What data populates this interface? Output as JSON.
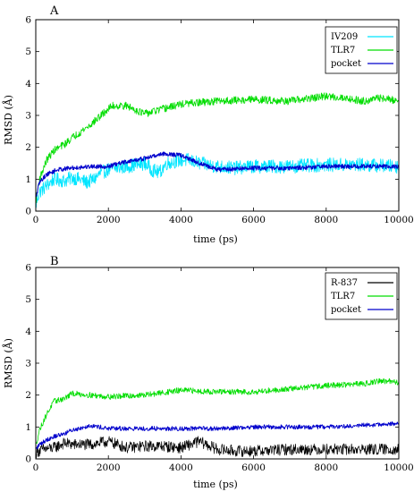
{
  "chart_data": [
    {
      "type": "line",
      "panel_label": "A",
      "xlabel": "time (ps)",
      "ylabel": "RMSD (Å)",
      "xlim": [
        0,
        10000
      ],
      "ylim": [
        0,
        6
      ],
      "xticks": [
        0,
        2000,
        4000,
        6000,
        8000,
        10000
      ],
      "yticks": [
        0,
        1,
        2,
        3,
        4,
        5,
        6
      ],
      "grid": false,
      "legend": "top-right",
      "series": [
        {
          "name": "IV209",
          "color": "#00e5ff",
          "noise": 0.22,
          "width": 0.8,
          "x": [
            0,
            100,
            300,
            500,
            800,
            1000,
            1200,
            1400,
            1600,
            1800,
            2000,
            2500,
            3000,
            3200,
            3400,
            3600,
            4000,
            4200,
            4500,
            5000,
            5500,
            6000,
            7000,
            8000,
            9000,
            10000
          ],
          "y": [
            0.2,
            0.6,
            0.8,
            1.0,
            0.95,
            1.05,
            1.0,
            0.9,
            1.0,
            1.2,
            1.3,
            1.4,
            1.5,
            1.3,
            1.2,
            1.5,
            1.6,
            1.6,
            1.5,
            1.4,
            1.35,
            1.4,
            1.4,
            1.45,
            1.45,
            1.4
          ]
        },
        {
          "name": "TLR7",
          "color": "#00dd00",
          "noise": 0.12,
          "width": 0.8,
          "x": [
            0,
            100,
            300,
            500,
            800,
            1000,
            1500,
            1900,
            2100,
            2500,
            3000,
            3500,
            4000,
            5000,
            6000,
            7000,
            8000,
            8500,
            9000,
            9500,
            10000
          ],
          "y": [
            0.3,
            1.0,
            1.6,
            1.9,
            2.1,
            2.3,
            2.7,
            3.1,
            3.3,
            3.3,
            3.05,
            3.2,
            3.35,
            3.45,
            3.5,
            3.45,
            3.6,
            3.55,
            3.45,
            3.55,
            3.45
          ]
        },
        {
          "name": "pocket",
          "color": "#0000cc",
          "noise": 0.07,
          "width": 1.0,
          "x": [
            0,
            100,
            300,
            600,
            1000,
            1500,
            2000,
            2500,
            3000,
            3500,
            4000,
            4500,
            5000,
            6000,
            7000,
            8000,
            9000,
            10000
          ],
          "y": [
            0.4,
            0.9,
            1.15,
            1.3,
            1.35,
            1.4,
            1.4,
            1.55,
            1.65,
            1.8,
            1.75,
            1.5,
            1.3,
            1.35,
            1.35,
            1.4,
            1.4,
            1.4
          ]
        }
      ]
    },
    {
      "type": "line",
      "panel_label": "B",
      "xlabel": "time (ps)",
      "ylabel": "RMSD (Å)",
      "xlim": [
        0,
        10000
      ],
      "ylim": [
        0,
        6
      ],
      "xticks": [
        0,
        2000,
        4000,
        6000,
        8000,
        10000
      ],
      "yticks": [
        0,
        1,
        2,
        3,
        4,
        5,
        6
      ],
      "grid": false,
      "legend": "top-right",
      "series": [
        {
          "name": "R-837",
          "color": "#000000",
          "noise": 0.18,
          "width": 0.7,
          "x": [
            0,
            200,
            500,
            800,
            1000,
            1500,
            2000,
            2500,
            3000,
            3500,
            4000,
            4500,
            5000,
            5500,
            6000,
            7000,
            8000,
            9000,
            10000
          ],
          "y": [
            0.2,
            0.3,
            0.35,
            0.5,
            0.45,
            0.45,
            0.55,
            0.35,
            0.4,
            0.4,
            0.35,
            0.55,
            0.3,
            0.25,
            0.25,
            0.3,
            0.3,
            0.3,
            0.3
          ]
        },
        {
          "name": "TLR7",
          "color": "#00dd00",
          "noise": 0.09,
          "width": 0.8,
          "x": [
            0,
            100,
            300,
            500,
            800,
            1000,
            1500,
            2000,
            3000,
            4000,
            5000,
            6000,
            7000,
            8000,
            9000,
            9500,
            10000
          ],
          "y": [
            0.4,
            0.9,
            1.4,
            1.8,
            1.9,
            2.05,
            2.0,
            1.95,
            2.0,
            2.15,
            2.1,
            2.1,
            2.2,
            2.3,
            2.35,
            2.45,
            2.4
          ]
        },
        {
          "name": "pocket",
          "color": "#0000cc",
          "noise": 0.07,
          "width": 0.9,
          "x": [
            0,
            100,
            300,
            500,
            800,
            1000,
            1500,
            2000,
            3000,
            4000,
            5000,
            6000,
            7000,
            8000,
            9000,
            10000
          ],
          "y": [
            0.3,
            0.45,
            0.6,
            0.7,
            0.8,
            0.9,
            1.05,
            0.95,
            0.95,
            0.95,
            0.95,
            1.0,
            1.0,
            1.0,
            1.05,
            1.1
          ]
        }
      ]
    }
  ]
}
